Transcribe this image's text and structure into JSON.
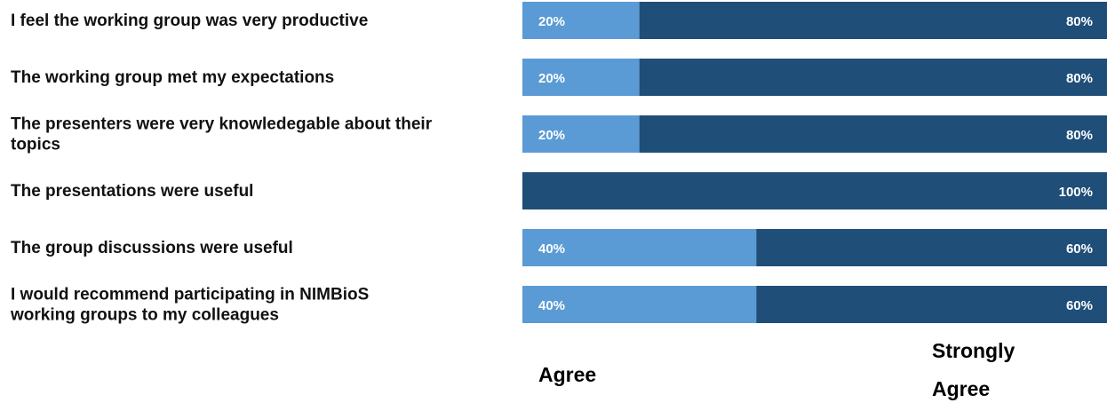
{
  "chart_data": {
    "type": "bar",
    "stacked": true,
    "orientation": "horizontal",
    "unit": "%",
    "categories": [
      [
        "I feel the working group was very productive"
      ],
      [
        "The working group met my expectations"
      ],
      [
        "The presenters were very knowledegable about their",
        "topics"
      ],
      [
        "The presentations were useful"
      ],
      [
        "The group discussions were useful"
      ],
      [
        "I would recommend participating in NIMBioS",
        "working groups to my colleagues"
      ]
    ],
    "series": [
      {
        "name": "Agree",
        "color": "#5b9bd5",
        "values": [
          20,
          20,
          20,
          0,
          40,
          40
        ]
      },
      {
        "name": "Strongly Agree",
        "color": "#1f4e79",
        "values": [
          80,
          80,
          80,
          100,
          60,
          60
        ]
      }
    ],
    "legend": [
      {
        "lines": [
          "Agree"
        ]
      },
      {
        "lines": [
          "Strongly",
          "Agree"
        ]
      }
    ],
    "xlim": [
      0,
      100
    ],
    "grid": false,
    "legend_position": "bottom"
  }
}
